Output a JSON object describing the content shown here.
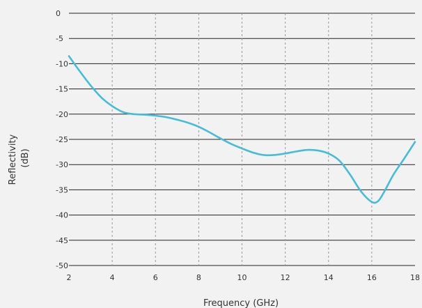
{
  "chart_data": {
    "type": "line",
    "title": "",
    "xlabel": "Frequency (GHz)",
    "ylabel": [
      "Reflectivity",
      "(dB)"
    ],
    "xlim": [
      2,
      18
    ],
    "ylim": [
      -50,
      0
    ],
    "x_ticks": [
      2,
      4,
      6,
      8,
      10,
      12,
      14,
      16,
      18
    ],
    "y_ticks": [
      0,
      -5,
      -10,
      -15,
      -20,
      -25,
      -30,
      -35,
      -40,
      -45,
      -50
    ],
    "grid": {
      "horizontal": "solid",
      "vertical": "dashed"
    },
    "line_color": "#45bcd8",
    "series": [
      {
        "x": [
          2,
          2.5,
          3,
          3.5,
          4,
          4.5,
          5,
          5.5,
          6,
          6.5,
          7,
          7.5,
          8,
          8.5,
          9,
          9.5,
          10,
          10.5,
          11,
          11.5,
          12,
          12.5,
          13,
          13.5,
          14,
          14.5,
          15,
          15.5,
          16,
          16.3,
          16.6,
          17,
          17.5,
          18
        ],
        "y": [
          -8.5,
          -11.5,
          -14.3,
          -16.7,
          -18.4,
          -19.6,
          -20.0,
          -20.1,
          -20.3,
          -20.6,
          -21.1,
          -21.7,
          -22.5,
          -23.6,
          -24.8,
          -25.9,
          -26.8,
          -27.6,
          -28.1,
          -28.1,
          -27.8,
          -27.4,
          -27.1,
          -27.2,
          -27.8,
          -29.2,
          -32.0,
          -35.3,
          -37.4,
          -37.2,
          -35.2,
          -32.0,
          -28.8,
          -25.5
        ]
      }
    ]
  }
}
